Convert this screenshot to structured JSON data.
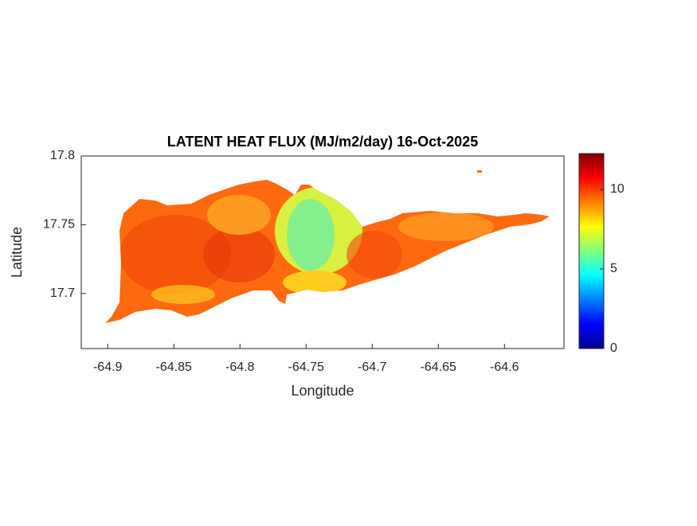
{
  "chart_data": {
    "type": "raster-map",
    "title": "LATENT HEAT FLUX (MJ/m2/day) 16-Oct-2025",
    "x_label": "Longitude",
    "y_label": "Latitude",
    "xlim": [
      -64.92,
      -64.555
    ],
    "xticks": [
      -64.9,
      -64.85,
      -64.8,
      -64.75,
      -64.7,
      -64.65,
      -64.6
    ],
    "ylim": [
      17.66,
      17.8
    ],
    "yticks": [
      17.7,
      17.75,
      17.8
    ],
    "colorbar": {
      "colormap": "jet",
      "clim": [
        0,
        12.25
      ],
      "ticks": [
        0,
        5,
        10
      ]
    }
  }
}
